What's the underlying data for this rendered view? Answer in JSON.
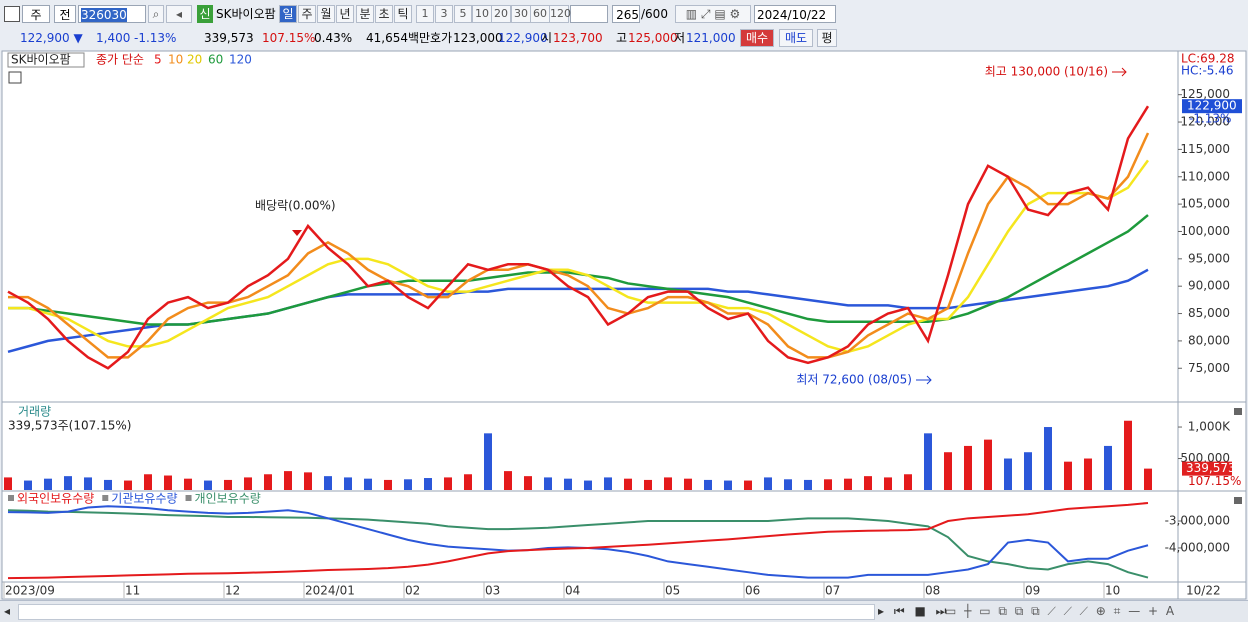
{
  "toolbar": {
    "period_type": "주",
    "adjust": "전",
    "code": "326030",
    "new": "신",
    "name": "SK바이오팜",
    "periods": [
      "일",
      "주",
      "월",
      "년",
      "분",
      "초",
      "틱"
    ],
    "intervals": [
      "1",
      "3",
      "5",
      "10",
      "20",
      "30",
      "60",
      "120"
    ],
    "count": "265",
    "max": "/600",
    "date": "2024/10/22"
  },
  "quote": {
    "price": "122,900 ▼",
    "change": "1,400",
    "change_rate": "-1.13%",
    "volume": "339,573",
    "volume_ratio": "107.15%",
    "turnover": "0.43%",
    "amount": "41,654백만",
    "ask_label": "호가",
    "ask": "123,000",
    "bid": "122,900",
    "open_label": "시",
    "open": "123,700",
    "high_label": "고",
    "high": "125,000",
    "low_label": "저",
    "low": "121,000",
    "buy": "매수",
    "sell": "매도",
    "eval": "평"
  },
  "chart_data": [
    {
      "type": "line",
      "label": "SK바이오팜",
      "legend_title": "종가 단순",
      "categories": [
        "2023/09",
        null,
        null,
        null,
        null,
        null,
        "11",
        null,
        null,
        null,
        null,
        "12",
        null,
        null,
        null,
        "2024/01",
        null,
        null,
        null,
        null,
        "02",
        null,
        null,
        null,
        "03",
        null,
        null,
        null,
        "04",
        null,
        null,
        null,
        null,
        "05",
        null,
        null,
        null,
        "06",
        null,
        null,
        null,
        "07",
        null,
        null,
        null,
        null,
        "08",
        null,
        null,
        null,
        null,
        "09",
        null,
        null,
        null,
        "10",
        null,
        null
      ],
      "x_end_label": "10/22",
      "series": [
        {
          "name": "5",
          "color": "#e41a1c",
          "values": [
            89000,
            87000,
            84000,
            80000,
            77000,
            75000,
            78000,
            84000,
            87000,
            88000,
            86000,
            87000,
            90000,
            92000,
            95000,
            101000,
            97000,
            94000,
            90000,
            91000,
            88000,
            86000,
            90000,
            94000,
            93000,
            94000,
            94000,
            93000,
            90000,
            88000,
            83000,
            85000,
            88000,
            89000,
            89000,
            86000,
            84000,
            85000,
            80000,
            77000,
            76000,
            77000,
            79000,
            83000,
            85000,
            86000,
            80000,
            92000,
            105000,
            112000,
            110000,
            104000,
            103000,
            107000,
            108000,
            104000,
            117000,
            122900
          ]
        },
        {
          "name": "10",
          "color": "#f28c1c",
          "values": [
            88000,
            88000,
            86000,
            83000,
            80000,
            77000,
            77000,
            80000,
            84000,
            86000,
            87000,
            87000,
            88000,
            90000,
            92000,
            96000,
            98000,
            96000,
            93000,
            91000,
            90000,
            88000,
            88000,
            91000,
            93000,
            93000,
            94000,
            93000,
            92000,
            90000,
            86000,
            85000,
            86000,
            88000,
            88000,
            87000,
            85000,
            85000,
            83000,
            79000,
            77000,
            77000,
            78000,
            81000,
            83000,
            85000,
            84000,
            86000,
            96000,
            105000,
            110000,
            108000,
            105000,
            105000,
            107000,
            106000,
            110000,
            118000
          ]
        },
        {
          "name": "20",
          "color": "#f5e61e",
          "values": [
            86000,
            86000,
            85000,
            84000,
            82000,
            80000,
            79000,
            79000,
            80000,
            82000,
            84000,
            86000,
            87000,
            88000,
            90000,
            92000,
            94000,
            95000,
            95000,
            94000,
            92000,
            90000,
            89000,
            89000,
            90000,
            91000,
            92000,
            93000,
            93000,
            92000,
            90000,
            88000,
            87000,
            87000,
            87000,
            87000,
            86000,
            86000,
            85000,
            83000,
            81000,
            79000,
            78000,
            79000,
            81000,
            83000,
            84000,
            84000,
            88000,
            94000,
            100000,
            105000,
            107000,
            107000,
            107000,
            106000,
            108000,
            113000
          ]
        },
        {
          "name": "60",
          "color": "#1e9a3c",
          "values": [
            86000,
            86000,
            85500,
            85000,
            84500,
            84000,
            83500,
            83000,
            83000,
            83000,
            83500,
            84000,
            84500,
            85000,
            86000,
            87000,
            88000,
            89000,
            90000,
            90500,
            91000,
            91000,
            91000,
            91000,
            91500,
            92000,
            92500,
            92500,
            92500,
            92000,
            91500,
            90500,
            90000,
            89500,
            89000,
            88500,
            88000,
            87000,
            86000,
            85000,
            84000,
            83500,
            83500,
            83500,
            83500,
            83500,
            83500,
            84000,
            85000,
            86500,
            88000,
            90000,
            92000,
            94000,
            96000,
            98000,
            100000,
            103000
          ]
        },
        {
          "name": "120",
          "color": "#2b57d9",
          "values": [
            78000,
            79000,
            80000,
            80500,
            81000,
            81500,
            82000,
            82500,
            83000,
            83000,
            83500,
            84000,
            84500,
            85000,
            86000,
            87000,
            88000,
            88500,
            88500,
            88500,
            88500,
            88500,
            88500,
            89000,
            89000,
            89500,
            89500,
            89500,
            89500,
            89500,
            89500,
            89500,
            89500,
            89500,
            89500,
            89500,
            89000,
            89000,
            88500,
            88000,
            87500,
            87000,
            86500,
            86500,
            86500,
            86000,
            86000,
            86000,
            86500,
            87000,
            87500,
            88000,
            88500,
            89000,
            89500,
            90000,
            91000,
            93000
          ]
        }
      ],
      "ylim": [
        69200,
        132800
      ],
      "yticks": [
        {
          "value": 75000,
          "label": "75,000"
        },
        {
          "value": 80000,
          "label": "80,000"
        },
        {
          "value": 85000,
          "label": "85,000"
        },
        {
          "value": 90000,
          "label": "90,000"
        },
        {
          "value": 95000,
          "label": "95,000"
        },
        {
          "value": 100000,
          "label": "100,000"
        },
        {
          "value": 105000,
          "label": "105,000"
        },
        {
          "value": 110000,
          "label": "110,000"
        },
        {
          "value": 115000,
          "label": "115,000"
        },
        {
          "value": 120000,
          "label": "120,000"
        },
        {
          "value": 125000,
          "label": "125,000"
        }
      ],
      "annotations": [
        "최고 130,000 (10/16)",
        "최저 72,600 (08/05)",
        "배당락(0.00%)"
      ],
      "corner_labels": [
        "LC:69.28",
        "HC:-5.46"
      ],
      "last_label": "122,900",
      "change_label": "-1.13%"
    },
    {
      "type": "bar",
      "title": "거래량",
      "subtitle": "339,573주(107.15%)",
      "colors": [
        "#e41a1c",
        "#2b57d9"
      ],
      "values": [
        200000,
        150000,
        180000,
        220000,
        200000,
        160000,
        150000,
        250000,
        230000,
        180000,
        150000,
        160000,
        200000,
        250000,
        300000,
        280000,
        220000,
        200000,
        180000,
        160000,
        170000,
        190000,
        200000,
        250000,
        900000,
        300000,
        220000,
        200000,
        180000,
        150000,
        200000,
        180000,
        160000,
        200000,
        180000,
        160000,
        150000,
        150000,
        200000,
        170000,
        160000,
        170000,
        180000,
        220000,
        200000,
        250000,
        900000,
        600000,
        700000,
        800000,
        500000,
        600000,
        1000000,
        450000,
        500000,
        700000,
        1100000,
        339573
      ],
      "ylim": [
        0,
        1350000
      ],
      "yticks": [
        {
          "value": 500000,
          "label": "500,000"
        },
        {
          "value": 1000000,
          "label": "1,000K"
        }
      ],
      "last_label": "339,573",
      "ratio_label": "107.15%"
    },
    {
      "type": "line",
      "series": [
        {
          "name": "외국인보유수량",
          "color": "#e41a1c",
          "values": [
            -5120000,
            -5110000,
            -5100000,
            -5080000,
            -5060000,
            -5040000,
            -5020000,
            -5000000,
            -4980000,
            -4960000,
            -4950000,
            -4940000,
            -4920000,
            -4900000,
            -4880000,
            -4850000,
            -4820000,
            -4800000,
            -4780000,
            -4750000,
            -4700000,
            -4620000,
            -4500000,
            -4350000,
            -4200000,
            -4120000,
            -4080000,
            -4050000,
            -4020000,
            -4000000,
            -3960000,
            -3920000,
            -3880000,
            -3830000,
            -3780000,
            -3730000,
            -3680000,
            -3620000,
            -3560000,
            -3500000,
            -3450000,
            -3400000,
            -3380000,
            -3360000,
            -3350000,
            -3340000,
            -3300000,
            -3000000,
            -2900000,
            -2850000,
            -2800000,
            -2750000,
            -2650000,
            -2550000,
            -2500000,
            -2450000,
            -2400000,
            -2330000
          ]
        },
        {
          "name": "기관보유수량",
          "color": "#2b57d9",
          "values": [
            -2670000,
            -2680000,
            -2700000,
            -2650000,
            -2500000,
            -2450000,
            -2480000,
            -2520000,
            -2600000,
            -2650000,
            -2700000,
            -2720000,
            -2700000,
            -2650000,
            -2600000,
            -2700000,
            -2900000,
            -3100000,
            -3300000,
            -3500000,
            -3700000,
            -3850000,
            -3950000,
            -4000000,
            -4050000,
            -4100000,
            -4080000,
            -4000000,
            -3980000,
            -4000000,
            -4050000,
            -4150000,
            -4300000,
            -4500000,
            -4600000,
            -4700000,
            -4800000,
            -4900000,
            -5000000,
            -5050000,
            -5100000,
            -5100000,
            -5100000,
            -5000000,
            -5000000,
            -5000000,
            -5000000,
            -4900000,
            -4800000,
            -4600000,
            -3800000,
            -3700000,
            -3800000,
            -4500000,
            -4400000,
            -4400000,
            -4100000,
            -3900000
          ]
        },
        {
          "name": "개인보유수량",
          "color": "#3a8f6a",
          "values": [
            -2600000,
            -2620000,
            -2650000,
            -2660000,
            -2680000,
            -2700000,
            -2720000,
            -2750000,
            -2780000,
            -2800000,
            -2820000,
            -2850000,
            -2850000,
            -2860000,
            -2870000,
            -2880000,
            -2900000,
            -2920000,
            -2950000,
            -3000000,
            -3050000,
            -3100000,
            -3200000,
            -3250000,
            -3300000,
            -3300000,
            -3280000,
            -3250000,
            -3200000,
            -3150000,
            -3100000,
            -3050000,
            -3000000,
            -3000000,
            -3000000,
            -3000000,
            -3000000,
            -3000000,
            -3000000,
            -2950000,
            -2900000,
            -2900000,
            -2900000,
            -2950000,
            -3000000,
            -3100000,
            -3200000,
            -3600000,
            -4300000,
            -4500000,
            -4600000,
            -4750000,
            -4800000,
            -4600000,
            -4500000,
            -4600000,
            -4900000,
            -5100000
          ]
        }
      ],
      "ylim": [
        -5190000,
        -1960000
      ],
      "yticks": [
        {
          "value": -4000000,
          "label": "-4,000,000"
        },
        {
          "value": -3000000,
          "label": "-3,000,000"
        }
      ]
    }
  ]
}
